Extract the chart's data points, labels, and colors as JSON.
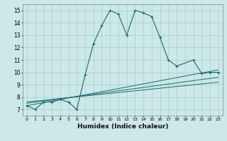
{
  "xlabel": "Humidex (Indice chaleur)",
  "bg_color": "#cce8e8",
  "grid_color": "#aacccc",
  "line_color": "#1a6b6b",
  "xlim": [
    -0.5,
    23.5
  ],
  "ylim": [
    6.5,
    15.5
  ],
  "main_x": [
    0,
    1,
    2,
    3,
    4,
    5,
    6,
    7,
    8,
    9,
    10,
    11,
    12,
    13,
    14,
    15,
    16,
    17,
    18,
    20,
    21,
    22,
    23
  ],
  "main_y": [
    7.3,
    7.0,
    7.6,
    7.6,
    7.8,
    7.6,
    7.0,
    9.8,
    12.3,
    13.8,
    15.0,
    14.7,
    13.0,
    15.0,
    14.8,
    14.5,
    12.8,
    11.0,
    10.5,
    11.0,
    9.9,
    10.0,
    10.0
  ],
  "line2_x": [
    0,
    23
  ],
  "line2_y": [
    7.3,
    10.2
  ],
  "line3_x": [
    0,
    23
  ],
  "line3_y": [
    7.5,
    9.6
  ],
  "line4_x": [
    0,
    23
  ],
  "line4_y": [
    7.6,
    9.2
  ],
  "yticks": [
    7,
    8,
    9,
    10,
    11,
    12,
    13,
    14,
    15
  ],
  "xtick_labels": [
    "0",
    "1",
    "2",
    "3",
    "4",
    "5",
    "6",
    "7",
    "8",
    "9",
    "10",
    "11",
    "12",
    "13",
    "14",
    "15",
    "16",
    "17",
    "18",
    "19",
    "20",
    "21",
    "22",
    "23"
  ]
}
